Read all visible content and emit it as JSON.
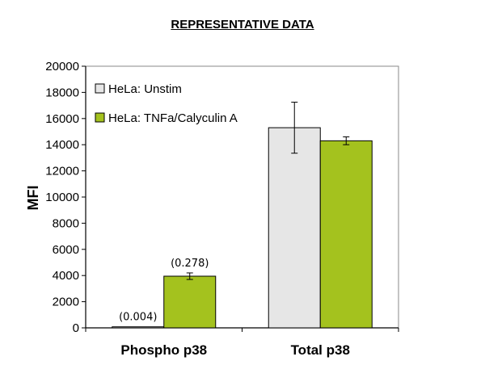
{
  "chart_data": {
    "type": "bar",
    "title": "REPRESENTATIVE DATA",
    "ylabel": "MFI",
    "xlabel": "",
    "ylim": [
      0,
      20000
    ],
    "yticks": [
      0,
      2000,
      4000,
      6000,
      8000,
      10000,
      12000,
      14000,
      16000,
      18000,
      20000
    ],
    "categories": [
      "Phospho p38",
      "Total p38"
    ],
    "series": [
      {
        "name": "HeLa: Unstim",
        "color": "#e6e6e6",
        "values": [
          80,
          15300
        ],
        "errors": [
          null,
          1950
        ]
      },
      {
        "name": "HeLa: TNFa/Calyculin A",
        "color": "#a4c21e",
        "values": [
          3950,
          14300
        ],
        "errors": [
          250,
          300
        ]
      }
    ],
    "annotations": [
      {
        "series": 0,
        "category": 0,
        "text": "(0.004)"
      },
      {
        "series": 1,
        "category": 0,
        "text": "(0.278)"
      }
    ],
    "legend_position": "top-left",
    "grid": false
  }
}
